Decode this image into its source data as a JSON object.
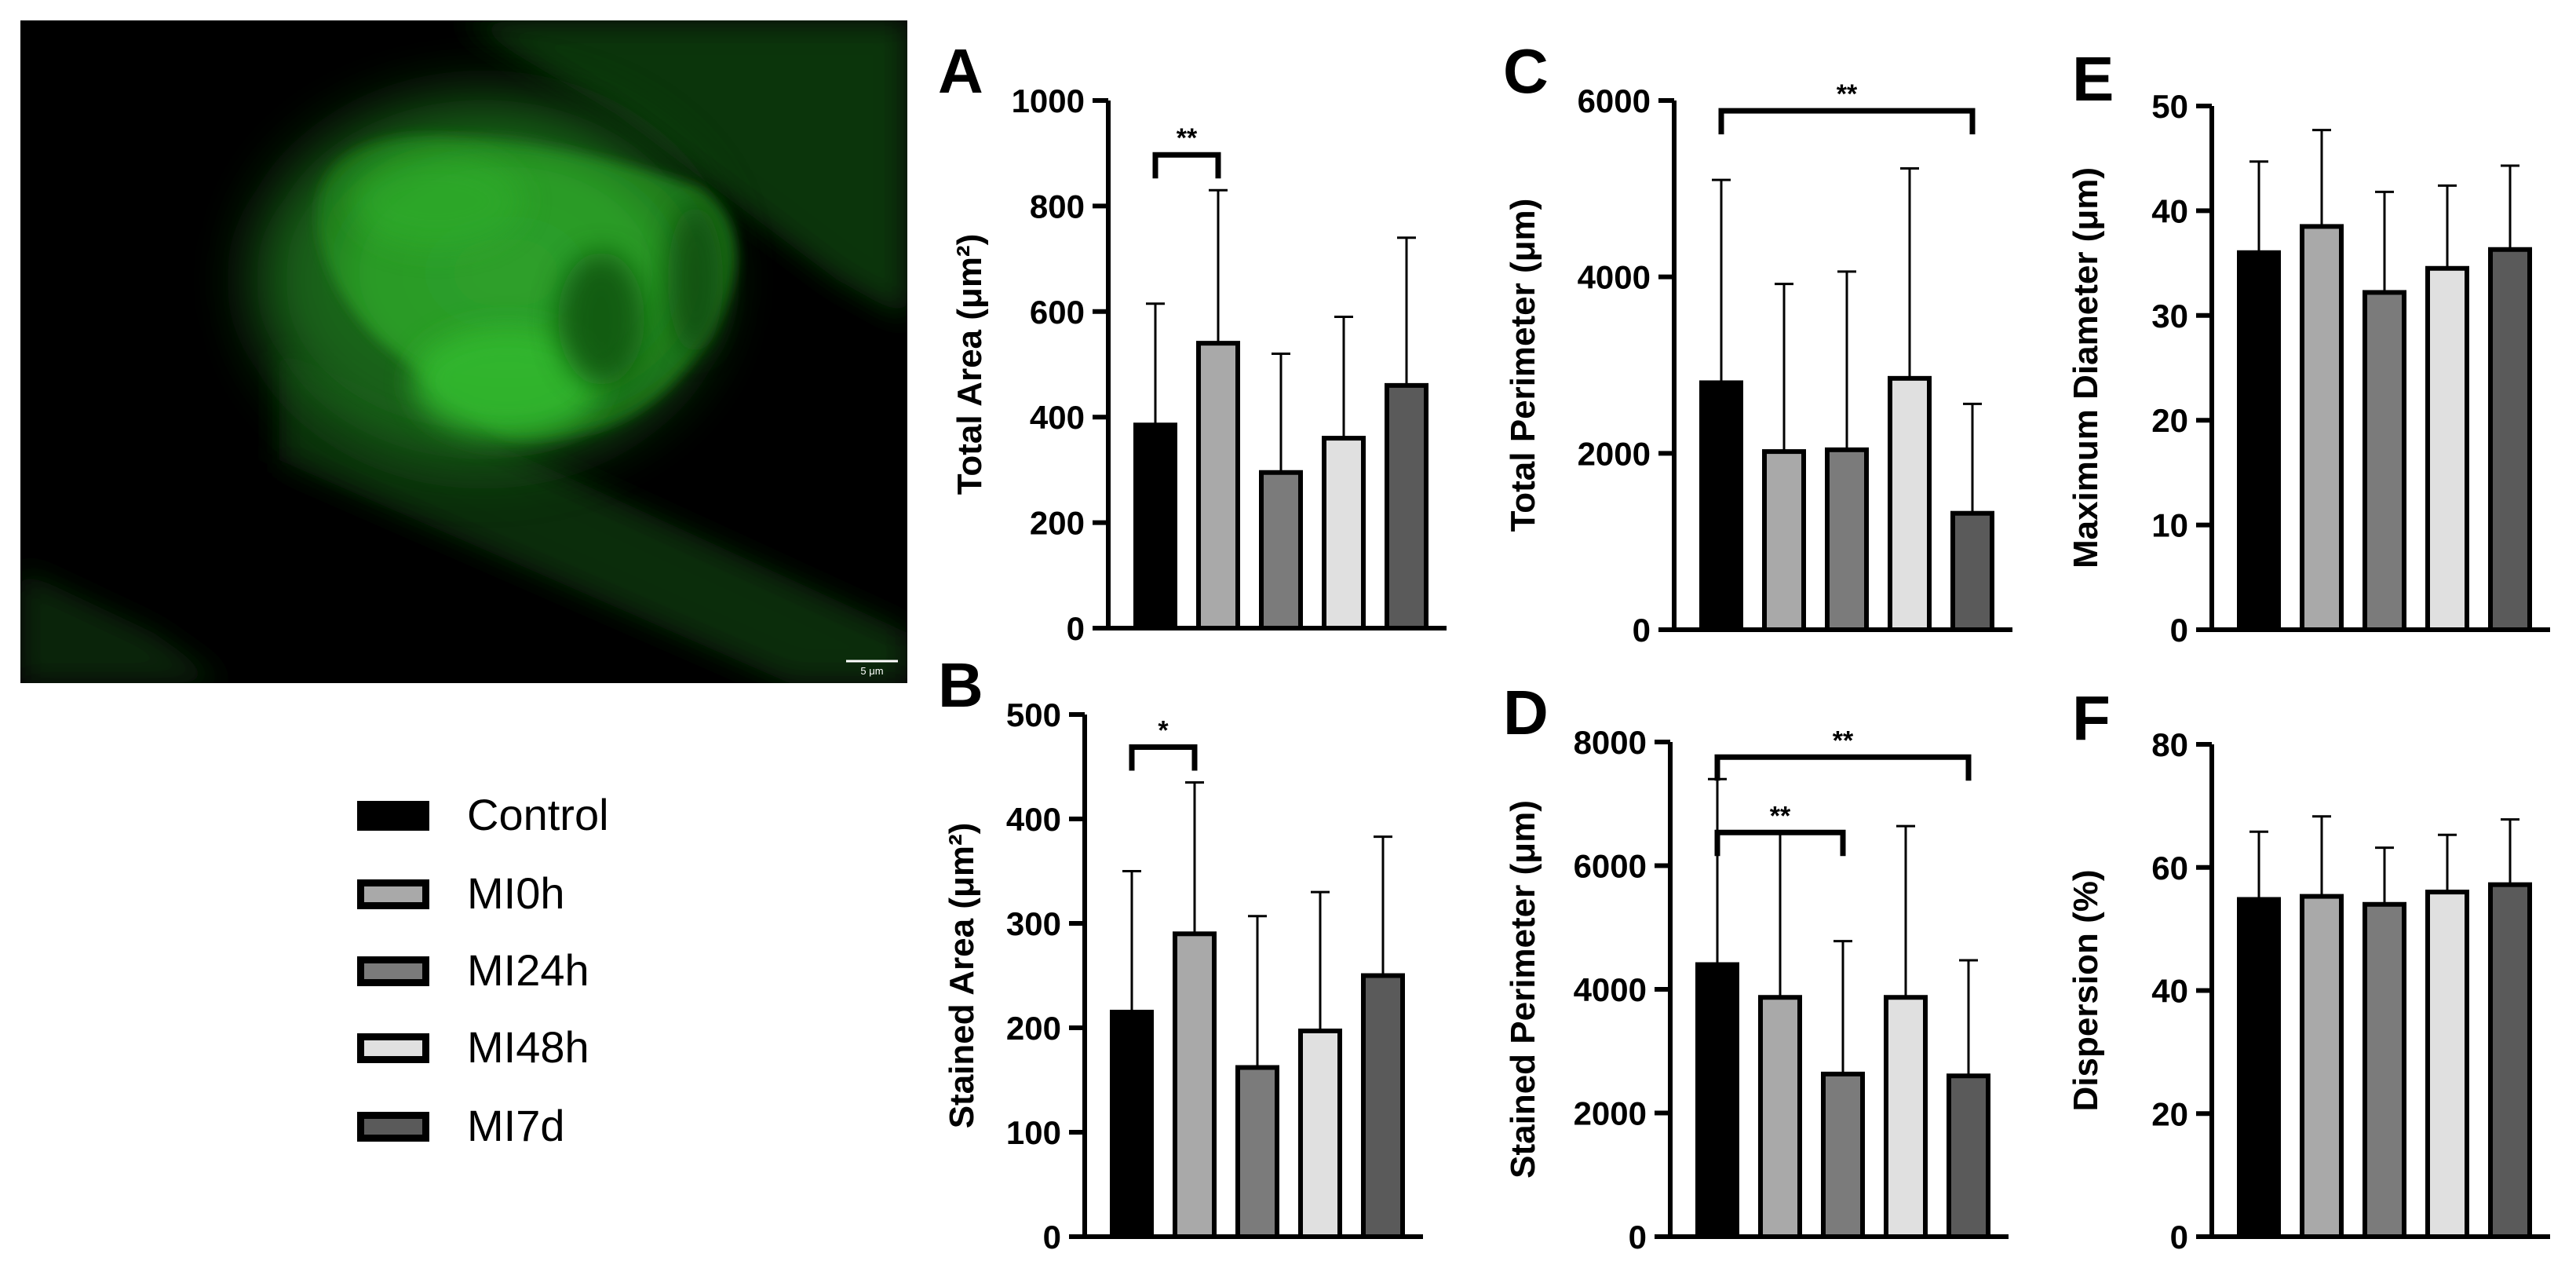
{
  "image": {
    "scale_bar_label": "5 μm"
  },
  "legend": [
    {
      "label": "Control",
      "color": "#000000"
    },
    {
      "label": "MI0h",
      "color": "#a9a9a9"
    },
    {
      "label": "MI24h",
      "color": "#7b7b7b"
    },
    {
      "label": "MI48h",
      "color": "#e0e0e0"
    },
    {
      "label": "MI7d",
      "color": "#5a5a5a"
    }
  ],
  "chart_data": [
    {
      "panel": "A",
      "type": "bar",
      "categories": [
        "Control",
        "MI0h",
        "MI24h",
        "MI48h",
        "MI7d"
      ],
      "values": [
        385,
        540,
        295,
        360,
        460
      ],
      "errors": [
        230,
        290,
        225,
        230,
        280
      ],
      "ylabel": "Total Area (μm²)",
      "ylim": [
        0,
        1000
      ],
      "yticks": [
        "0",
        "200",
        "400",
        "600",
        "800",
        "1000"
      ],
      "significance": [
        {
          "from": 0,
          "to": 1,
          "label": "**"
        }
      ]
    },
    {
      "panel": "B",
      "type": "bar",
      "categories": [
        "Control",
        "MI0h",
        "MI24h",
        "MI48h",
        "MI7d"
      ],
      "values": [
        215,
        290,
        162,
        197,
        250
      ],
      "errors": [
        135,
        145,
        145,
        133,
        133
      ],
      "ylabel": "Stained Area (μm²)",
      "ylim": [
        0,
        500
      ],
      "yticks": [
        "0",
        "100",
        "200",
        "300",
        "400",
        "500"
      ],
      "significance": [
        {
          "from": 0,
          "to": 1,
          "label": "*"
        }
      ]
    },
    {
      "panel": "C",
      "type": "bar",
      "categories": [
        "Control",
        "MI0h",
        "MI24h",
        "MI48h",
        "MI7d"
      ],
      "values": [
        2800,
        2020,
        2040,
        2850,
        1320
      ],
      "errors": [
        2300,
        1900,
        2020,
        2380,
        1240
      ],
      "ylabel": "Total Perimeter (μm)",
      "ylim": [
        0,
        6000
      ],
      "yticks": [
        "0",
        "2000",
        "4000",
        "6000"
      ],
      "significance": [
        {
          "from": 0,
          "to": 4,
          "label": "**"
        }
      ]
    },
    {
      "panel": "D",
      "type": "bar",
      "categories": [
        "Control",
        "MI0h",
        "MI24h",
        "MI48h",
        "MI7d"
      ],
      "values": [
        4400,
        3870,
        2630,
        3870,
        2600
      ],
      "errors": [
        3000,
        2650,
        2150,
        2770,
        1870
      ],
      "ylabel": "Stained Perimeter (μm)",
      "ylim": [
        0,
        8000
      ],
      "yticks": [
        "0",
        "2000",
        "4000",
        "6000",
        "8000"
      ],
      "significance": [
        {
          "from": 0,
          "to": 2,
          "label": "**"
        },
        {
          "from": 0,
          "to": 4,
          "label": "**"
        }
      ]
    },
    {
      "panel": "E",
      "type": "bar",
      "categories": [
        "Control",
        "MI0h",
        "MI24h",
        "MI48h",
        "MI7d"
      ],
      "values": [
        36,
        38.5,
        32.2,
        34.5,
        36.3
      ],
      "errors": [
        8.7,
        9.2,
        9.6,
        7.9,
        8.0
      ],
      "ylabel": "Maximum Diameter (μm)",
      "ylim": [
        0,
        50
      ],
      "yticks": [
        "0",
        "10",
        "20",
        "30",
        "40",
        "50"
      ],
      "significance": []
    },
    {
      "panel": "F",
      "type": "bar",
      "categories": [
        "Control",
        "MI0h",
        "MI24h",
        "MI48h",
        "MI7d"
      ],
      "values": [
        54.8,
        55.3,
        54,
        56,
        57.2
      ],
      "errors": [
        11,
        13,
        9.2,
        9.3,
        10.6
      ],
      "ylabel": "Dispersion (%)",
      "ylim": [
        0,
        80
      ],
      "yticks": [
        "0",
        "20",
        "40",
        "60",
        "80"
      ],
      "significance": []
    }
  ]
}
